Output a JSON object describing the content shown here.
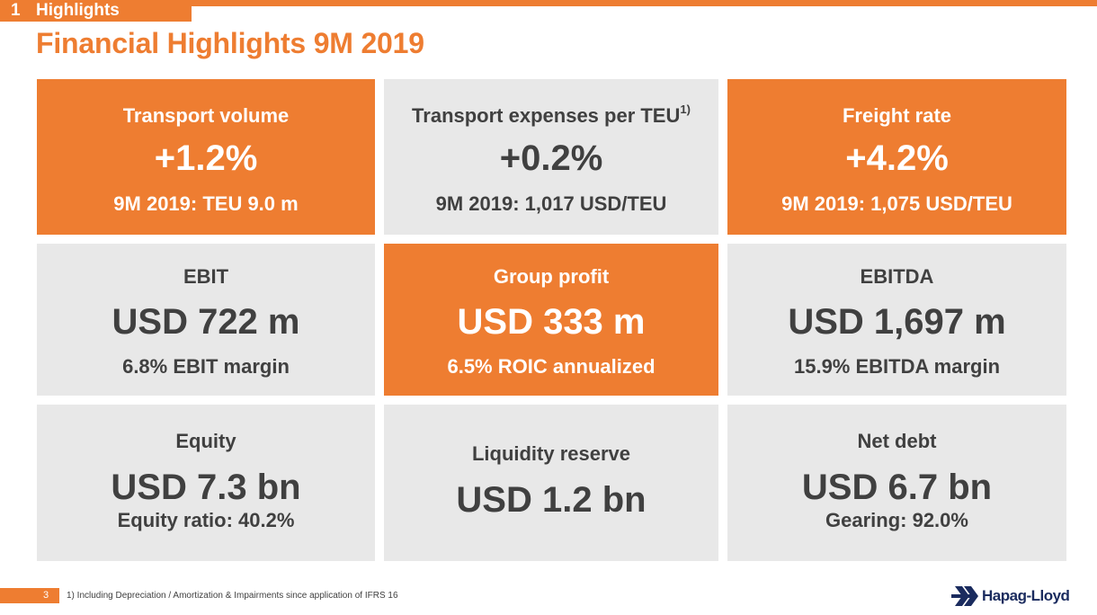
{
  "header": {
    "section_number": "1",
    "section_label": "Highlights",
    "title": "Financial Highlights 9M 2019"
  },
  "tiles": [
    {
      "label": "Transport volume",
      "label_sup": "",
      "value": "+1.2%",
      "sub": "9M 2019: TEU 9.0 m",
      "style": "orange"
    },
    {
      "label": "Transport expenses per TEU",
      "label_sup": "1)",
      "value": "+0.2%",
      "sub": "9M 2019: 1,017 USD/TEU",
      "style": "grey"
    },
    {
      "label": "Freight rate",
      "label_sup": "",
      "value": "+4.2%",
      "sub": "9M 2019: 1,075 USD/TEU",
      "style": "orange"
    },
    {
      "label": "EBIT",
      "label_sup": "",
      "value": "USD 722 m",
      "sub": "6.8% EBIT margin",
      "style": "grey"
    },
    {
      "label": "Group profit",
      "label_sup": "",
      "value": "USD 333 m",
      "sub": "6.5% ROIC annualized",
      "style": "orange"
    },
    {
      "label": "EBITDA",
      "label_sup": "",
      "value": "USD 1,697 m",
      "sub": "15.9% EBITDA margin",
      "style": "grey"
    },
    {
      "label": "Equity",
      "label_sup": "",
      "value": "USD 7.3 bn",
      "sub": "Equity ratio: 40.2%",
      "style": "grey"
    },
    {
      "label": "Liquidity reserve",
      "label_sup": "",
      "value": "USD 1.2 bn",
      "sub": "",
      "style": "grey"
    },
    {
      "label": "Net debt",
      "label_sup": "",
      "value": "USD 6.7 bn",
      "sub": "Gearing: 92.0%",
      "style": "grey"
    }
  ],
  "footer": {
    "page_number": "3",
    "footnote": "1) Including Depreciation / Amortization & Impairments since application of IFRS 16",
    "logo_text": "Hapag-Lloyd",
    "logo_icon": "hapag-lloyd-logo-icon"
  },
  "colors": {
    "accent": "#EE7D31",
    "tile_grey": "#E8E8E8",
    "text_dark": "#404040",
    "logo_navy": "#1a2b5e"
  }
}
